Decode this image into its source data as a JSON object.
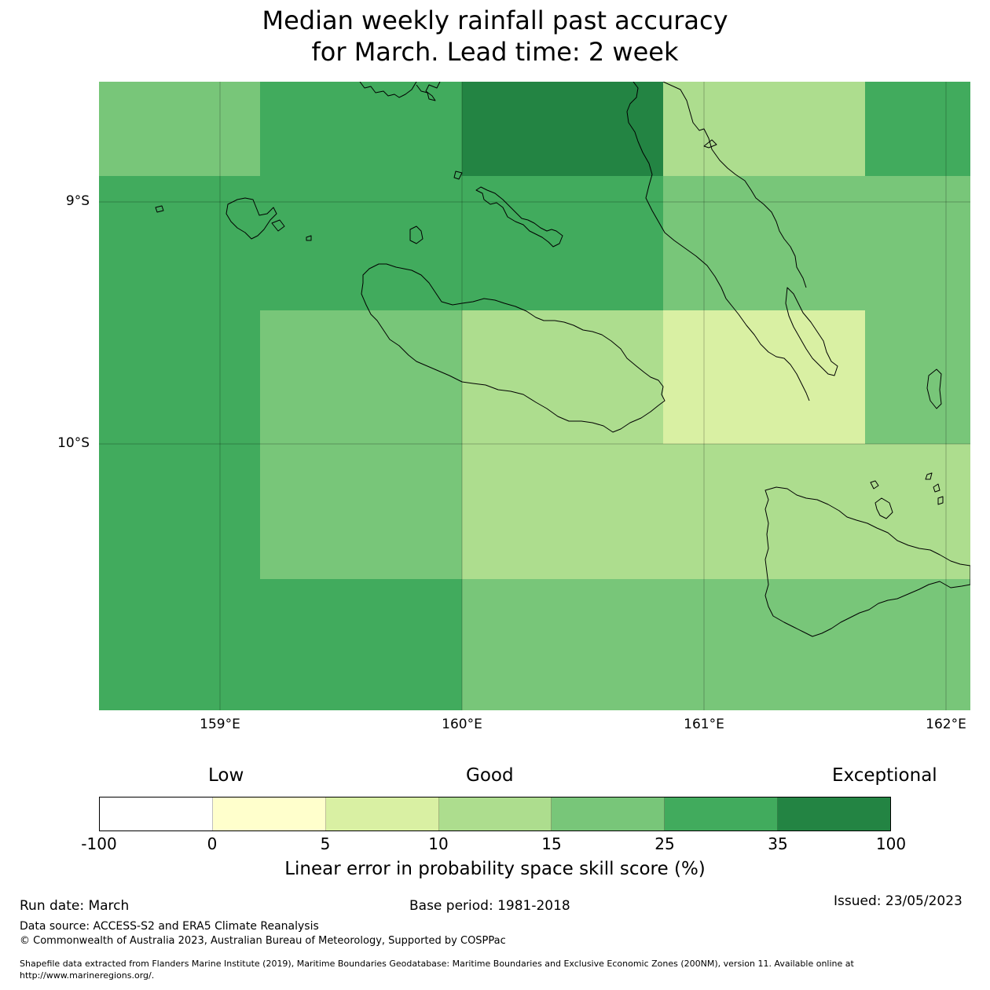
{
  "title_line1": "Median weekly rainfall past accuracy",
  "title_line2": "for March. Lead time: 2 week",
  "map": {
    "x_ticks": [
      "159°E",
      "160°E",
      "161°E",
      "162°E"
    ],
    "y_ticks": [
      "9°S",
      "10°S"
    ],
    "skill_colors": {
      "c1": "#ffffcc",
      "c2": "#d9f0a3",
      "c3": "#addd8e",
      "c4": "#78c679",
      "c5": "#41ab5d",
      "c6": "#238443"
    }
  },
  "legend": {
    "category_low": "Low",
    "category_good": "Good",
    "category_exceptional": "Exceptional",
    "colors": [
      "#ffffff",
      "#ffffcc",
      "#d9f0a3",
      "#addd8e",
      "#78c679",
      "#41ab5d",
      "#238443"
    ],
    "ticks": [
      "-100",
      "0",
      "5",
      "10",
      "15",
      "25",
      "35",
      "100"
    ],
    "label": "Linear error in probability space skill score (%)"
  },
  "footer": {
    "run_date": "Run date: March",
    "base_period": "Base period: 1981-2018",
    "issued": "Issued: 23/05/2023",
    "data_source": "Data source: ACCESS-S2 and ERA5 Climate Reanalysis",
    "copyright": "© Commonwealth of Australia 2023, Australian Bureau of Meteorology, Supported by COSPPac",
    "shapefile_line1": "Shapefile data extracted from Flanders Marine Institute (2019), Maritime Boundaries Geodatabase: Maritime Boundaries and Exclusive Economic Zones (200NM), version 11. Available online at",
    "shapefile_line2": "http://www.marineregions.org/."
  }
}
